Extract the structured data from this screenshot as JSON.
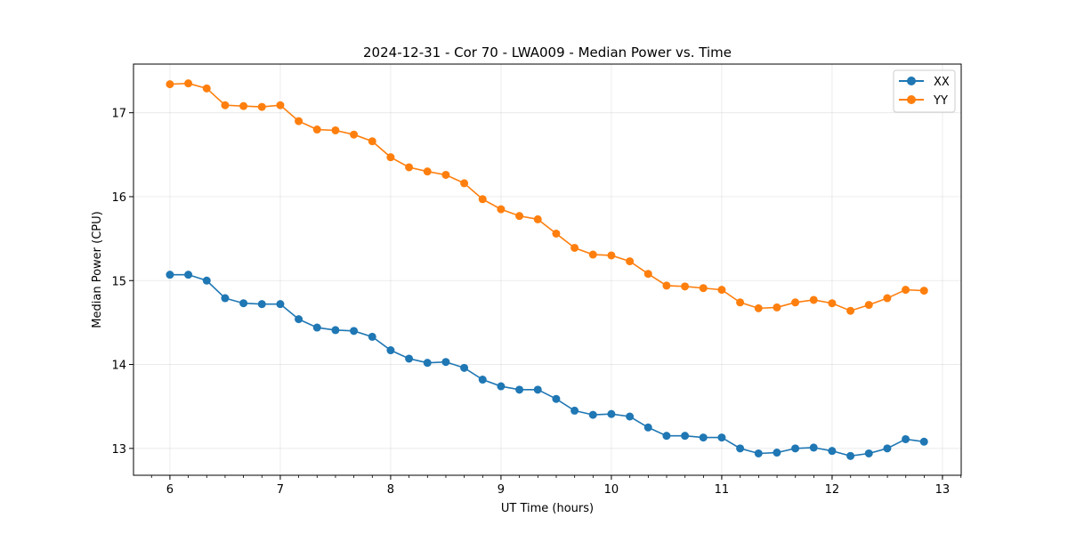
{
  "chart_data": {
    "type": "line",
    "title": "2024-12-31 - Cor 70 - LWA009 - Median Power vs. Time",
    "xlabel": "UT Time (hours)",
    "ylabel": "Median Power (CPU)",
    "xlim": [
      5.67,
      13.17
    ],
    "ylim": [
      12.68,
      17.58
    ],
    "xticks": [
      6,
      7,
      8,
      9,
      10,
      11,
      12,
      13
    ],
    "xtick_labels": [
      "6",
      "7",
      "8",
      "9",
      "10",
      "11",
      "12",
      "13"
    ],
    "yticks": [
      13,
      14,
      15,
      16,
      17
    ],
    "ytick_labels": [
      "13",
      "14",
      "15",
      "16",
      "17"
    ],
    "x_minor_step": 0.1667,
    "grid": true,
    "legend_position": "top-right",
    "x": [
      6.0,
      6.1667,
      6.3333,
      6.5,
      6.6667,
      6.8333,
      7.0,
      7.1667,
      7.3333,
      7.5,
      7.6667,
      7.8333,
      8.0,
      8.1667,
      8.3333,
      8.5,
      8.6667,
      8.8333,
      9.0,
      9.1667,
      9.3333,
      9.5,
      9.6667,
      9.8333,
      10.0,
      10.1667,
      10.3333,
      10.5,
      10.6667,
      10.8333,
      11.0,
      11.1667,
      11.3333,
      11.5,
      11.6667,
      11.8333,
      12.0,
      12.1667,
      12.3333,
      12.5,
      12.6667,
      12.8333
    ],
    "series": [
      {
        "name": "XX",
        "color": "#1f77b4",
        "values": [
          15.07,
          15.07,
          15.0,
          14.79,
          14.73,
          14.72,
          14.72,
          14.54,
          14.44,
          14.41,
          14.4,
          14.33,
          14.17,
          14.07,
          14.02,
          14.03,
          13.96,
          13.82,
          13.74,
          13.7,
          13.7,
          13.59,
          13.45,
          13.4,
          13.41,
          13.38,
          13.25,
          13.15,
          13.15,
          13.13,
          13.13,
          13.0,
          12.94,
          12.95,
          13.0,
          13.01,
          12.97,
          12.91,
          12.94,
          13.0,
          13.11,
          13.08
        ]
      },
      {
        "name": "YY",
        "color": "#ff7f0e",
        "values": [
          17.34,
          17.35,
          17.29,
          17.09,
          17.08,
          17.07,
          17.09,
          16.9,
          16.8,
          16.79,
          16.74,
          16.66,
          16.47,
          16.35,
          16.3,
          16.26,
          16.16,
          15.97,
          15.85,
          15.77,
          15.73,
          15.56,
          15.39,
          15.31,
          15.3,
          15.23,
          15.08,
          14.94,
          14.93,
          14.91,
          14.89,
          14.74,
          14.67,
          14.68,
          14.74,
          14.77,
          14.73,
          14.64,
          14.71,
          14.79,
          14.89,
          14.88
        ]
      }
    ]
  }
}
